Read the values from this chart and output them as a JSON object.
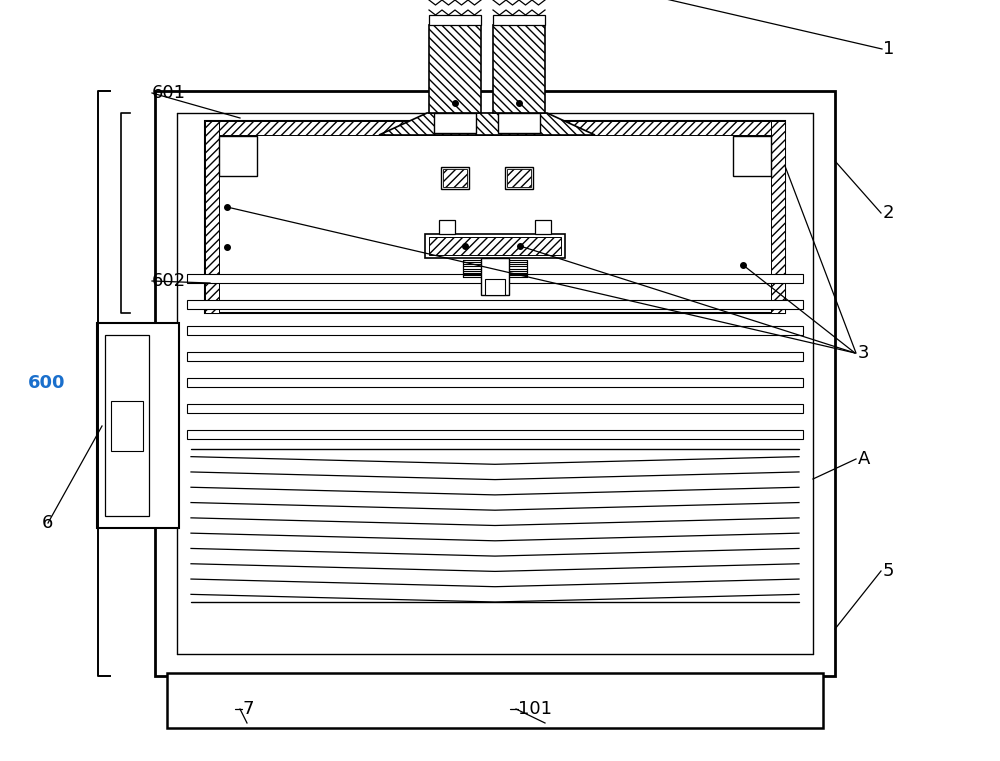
{
  "bg_color": "#ffffff",
  "line_color": "#000000",
  "label_600_color": "#1a6fcc",
  "figsize": [
    10.0,
    7.61
  ],
  "dpi": 100
}
